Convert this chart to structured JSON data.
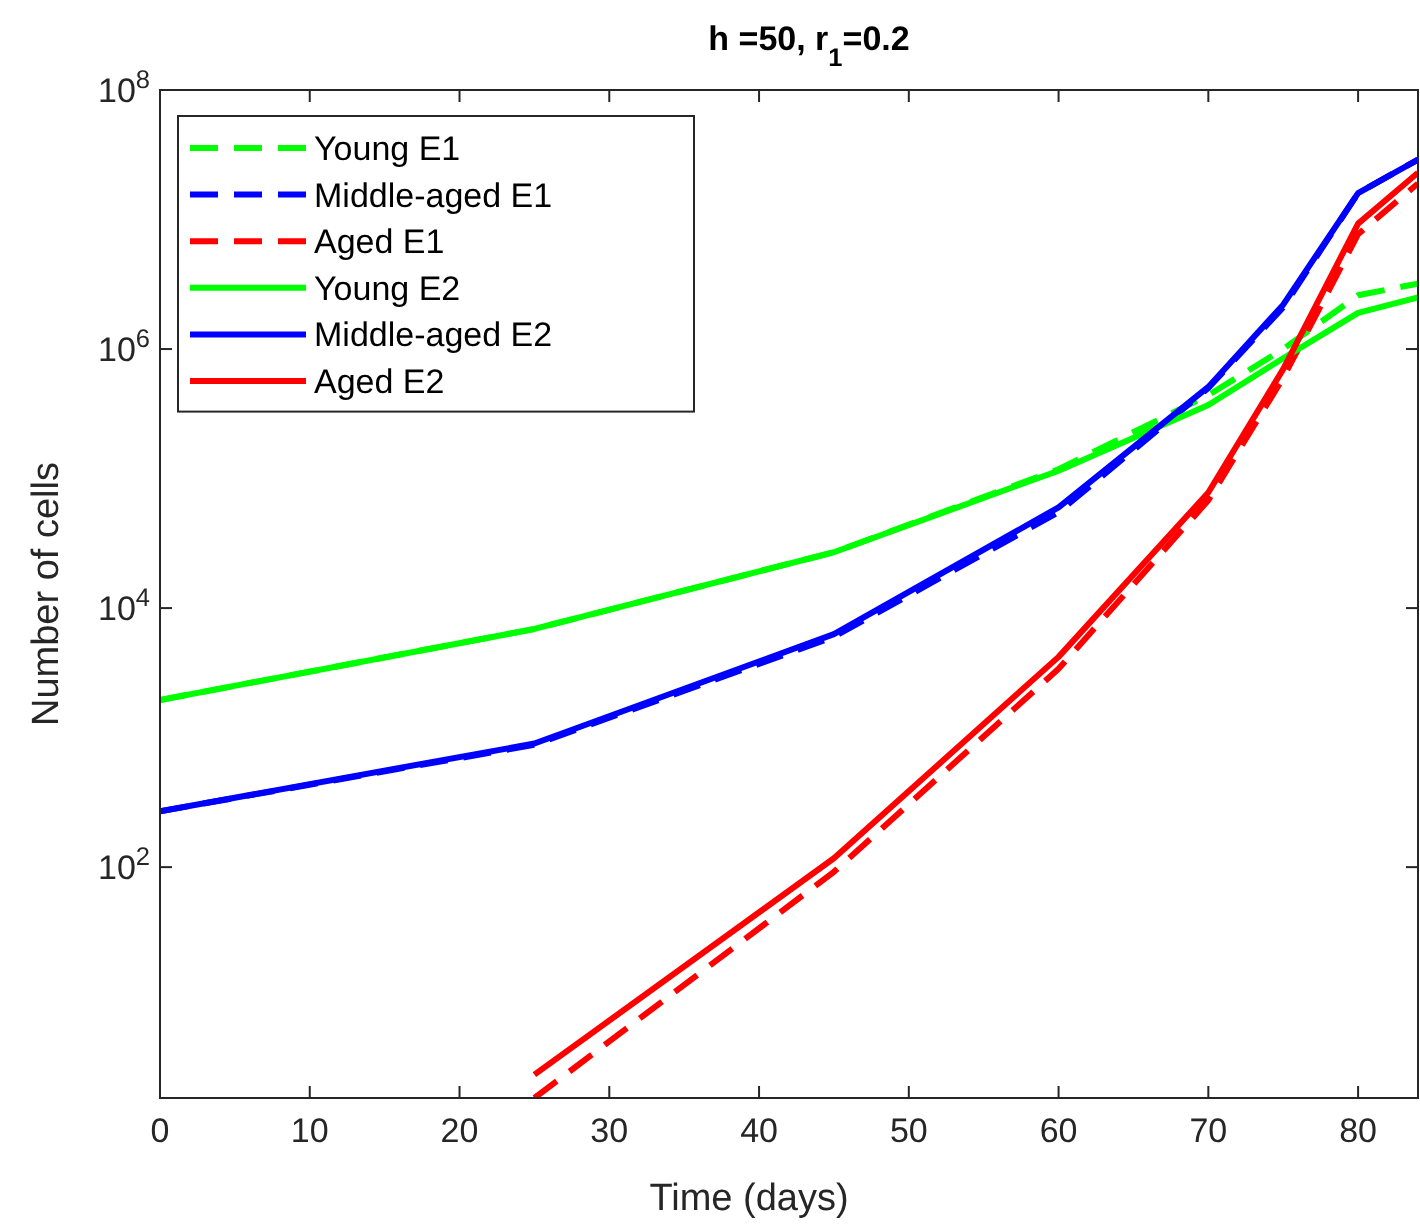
{
  "chart_data": {
    "type": "line",
    "title": "h =50, r$_{1}$=0.2",
    "xlabel": "Time (days)",
    "ylabel": "Number of cells",
    "log": "y",
    "xlim": [
      0,
      84
    ],
    "ylim": [
      1.65,
      100000000
    ],
    "xticks": [
      0,
      10,
      20,
      30,
      40,
      50,
      60,
      70,
      80
    ],
    "yticks": [
      {
        "value": 100,
        "label": "10$^{2}$"
      },
      {
        "value": 10000,
        "label": "10$^{4}$"
      },
      {
        "value": 1000000,
        "label": "10$^{6}$"
      },
      {
        "value": 100000000,
        "label": "10$^{8}$"
      }
    ],
    "grid": false,
    "legend": "top left",
    "x": [
      0,
      25,
      45,
      60,
      70,
      75,
      80,
      84
    ],
    "series": [
      {
        "name": "Young E1",
        "color": "#00ff00",
        "line_style": "dashed",
        "values": [
          1950,
          6900,
          27000,
          118000,
          440000,
          1000000,
          2600000,
          3200000
        ]
      },
      {
        "name": "Middle-aged E1",
        "color": "#0000ff",
        "line_style": "dashed",
        "values": [
          270,
          880,
          6000,
          55000,
          500000,
          2100000,
          16000000,
          29000000
        ]
      },
      {
        "name": "Aged E1",
        "color": "#ff0000",
        "line_style": "dashed",
        "x": [
          25,
          45,
          60,
          70,
          75,
          80,
          84
        ],
        "values": [
          1.65,
          92,
          3400,
          68000,
          600000,
          7700000,
          19000000
        ]
      },
      {
        "name": "Young E2",
        "color": "#00ff00",
        "line_style": "solid",
        "values": [
          1950,
          6900,
          27000,
          115000,
          370000,
          850000,
          1900000,
          2500000
        ]
      },
      {
        "name": "Middle-aged E2",
        "color": "#0000ff",
        "line_style": "solid",
        "values": [
          270,
          900,
          6300,
          60000,
          510000,
          2200000,
          16000000,
          29000000
        ]
      },
      {
        "name": "Aged E2",
        "color": "#ff0000",
        "line_style": "solid",
        "x": [
          25,
          45,
          60,
          70,
          75,
          80,
          84
        ],
        "values": [
          2.5,
          117,
          4200,
          78000,
          700000,
          9300000,
          23000000
        ]
      }
    ]
  }
}
